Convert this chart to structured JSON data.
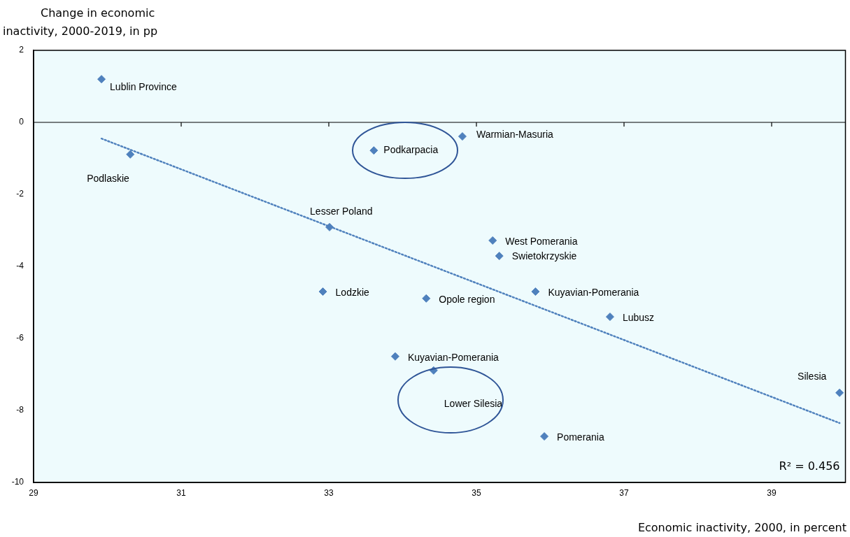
{
  "chart_data": {
    "type": "scatter",
    "ylabel": "Change in economic inactivity, 2000-2019, in pp",
    "xlabel": "Economic inactivity, 2000, in percent",
    "xlim": [
      29,
      40
    ],
    "xticks": [
      29,
      31,
      33,
      35,
      37,
      39
    ],
    "ylim": [
      -10,
      2
    ],
    "yticks": [
      -10,
      -8,
      -6,
      -4,
      -2,
      0,
      2
    ],
    "grid": false,
    "legend": false,
    "marker": "diamond",
    "ref_lines": [
      {
        "axis": "y",
        "value": 0,
        "color": "#000000"
      }
    ],
    "series": [
      {
        "color": "#4f81bd",
        "x": [
          29.92,
          30.31,
          33.61,
          34.81,
          33.01,
          35.22,
          35.31,
          32.92,
          34.32,
          35.8,
          36.81,
          33.9,
          34.42,
          35.92,
          39.92
        ],
        "values": [
          1.2,
          -0.89,
          -0.78,
          -0.39,
          -2.91,
          -3.28,
          -3.71,
          -4.7,
          -4.89,
          -4.7,
          -5.4,
          -6.5,
          -6.89,
          -8.72,
          -7.51
        ]
      },
      {
        "type": "line",
        "color": "#4f81bd",
        "line_style": "dotted",
        "marker": "none",
        "x": [
          29.92,
          39.92
        ],
        "values": [
          -0.45,
          -8.35
        ]
      }
    ],
    "annotations": [
      {
        "text": "Lublin Province",
        "x": 29.92,
        "y": 1.2
      },
      {
        "text": "Podlaskie",
        "x": 30.31,
        "y": -0.89
      },
      {
        "text": "Podkarpacia",
        "x": 33.61,
        "y": -0.78
      },
      {
        "text": "Warmian-Masuria",
        "x": 34.81,
        "y": -0.39
      },
      {
        "text": "Lesser Poland",
        "x": 33.01,
        "y": -2.91
      },
      {
        "text": "West Pomerania",
        "x": 35.22,
        "y": -3.28
      },
      {
        "text": "Swietokrzyskie",
        "x": 35.31,
        "y": -3.71
      },
      {
        "text": "Lodzkie",
        "x": 32.92,
        "y": -4.7
      },
      {
        "text": "Opole region",
        "x": 34.32,
        "y": -4.89
      },
      {
        "text": "Kuyavian-Pomerania",
        "x": 35.8,
        "y": -4.7
      },
      {
        "text": "Lubusz",
        "x": 36.81,
        "y": -5.4
      },
      {
        "text": "Kuyavian-Pomerania",
        "x": 33.9,
        "y": -6.5
      },
      {
        "text": "Lower Silesia",
        "x": 34.42,
        "y": -6.89
      },
      {
        "text": "Pomerania",
        "x": 35.92,
        "y": -8.72
      },
      {
        "text": "Silesia",
        "x": 39.92,
        "y": -7.51
      },
      "R² = 0.456"
    ]
  }
}
